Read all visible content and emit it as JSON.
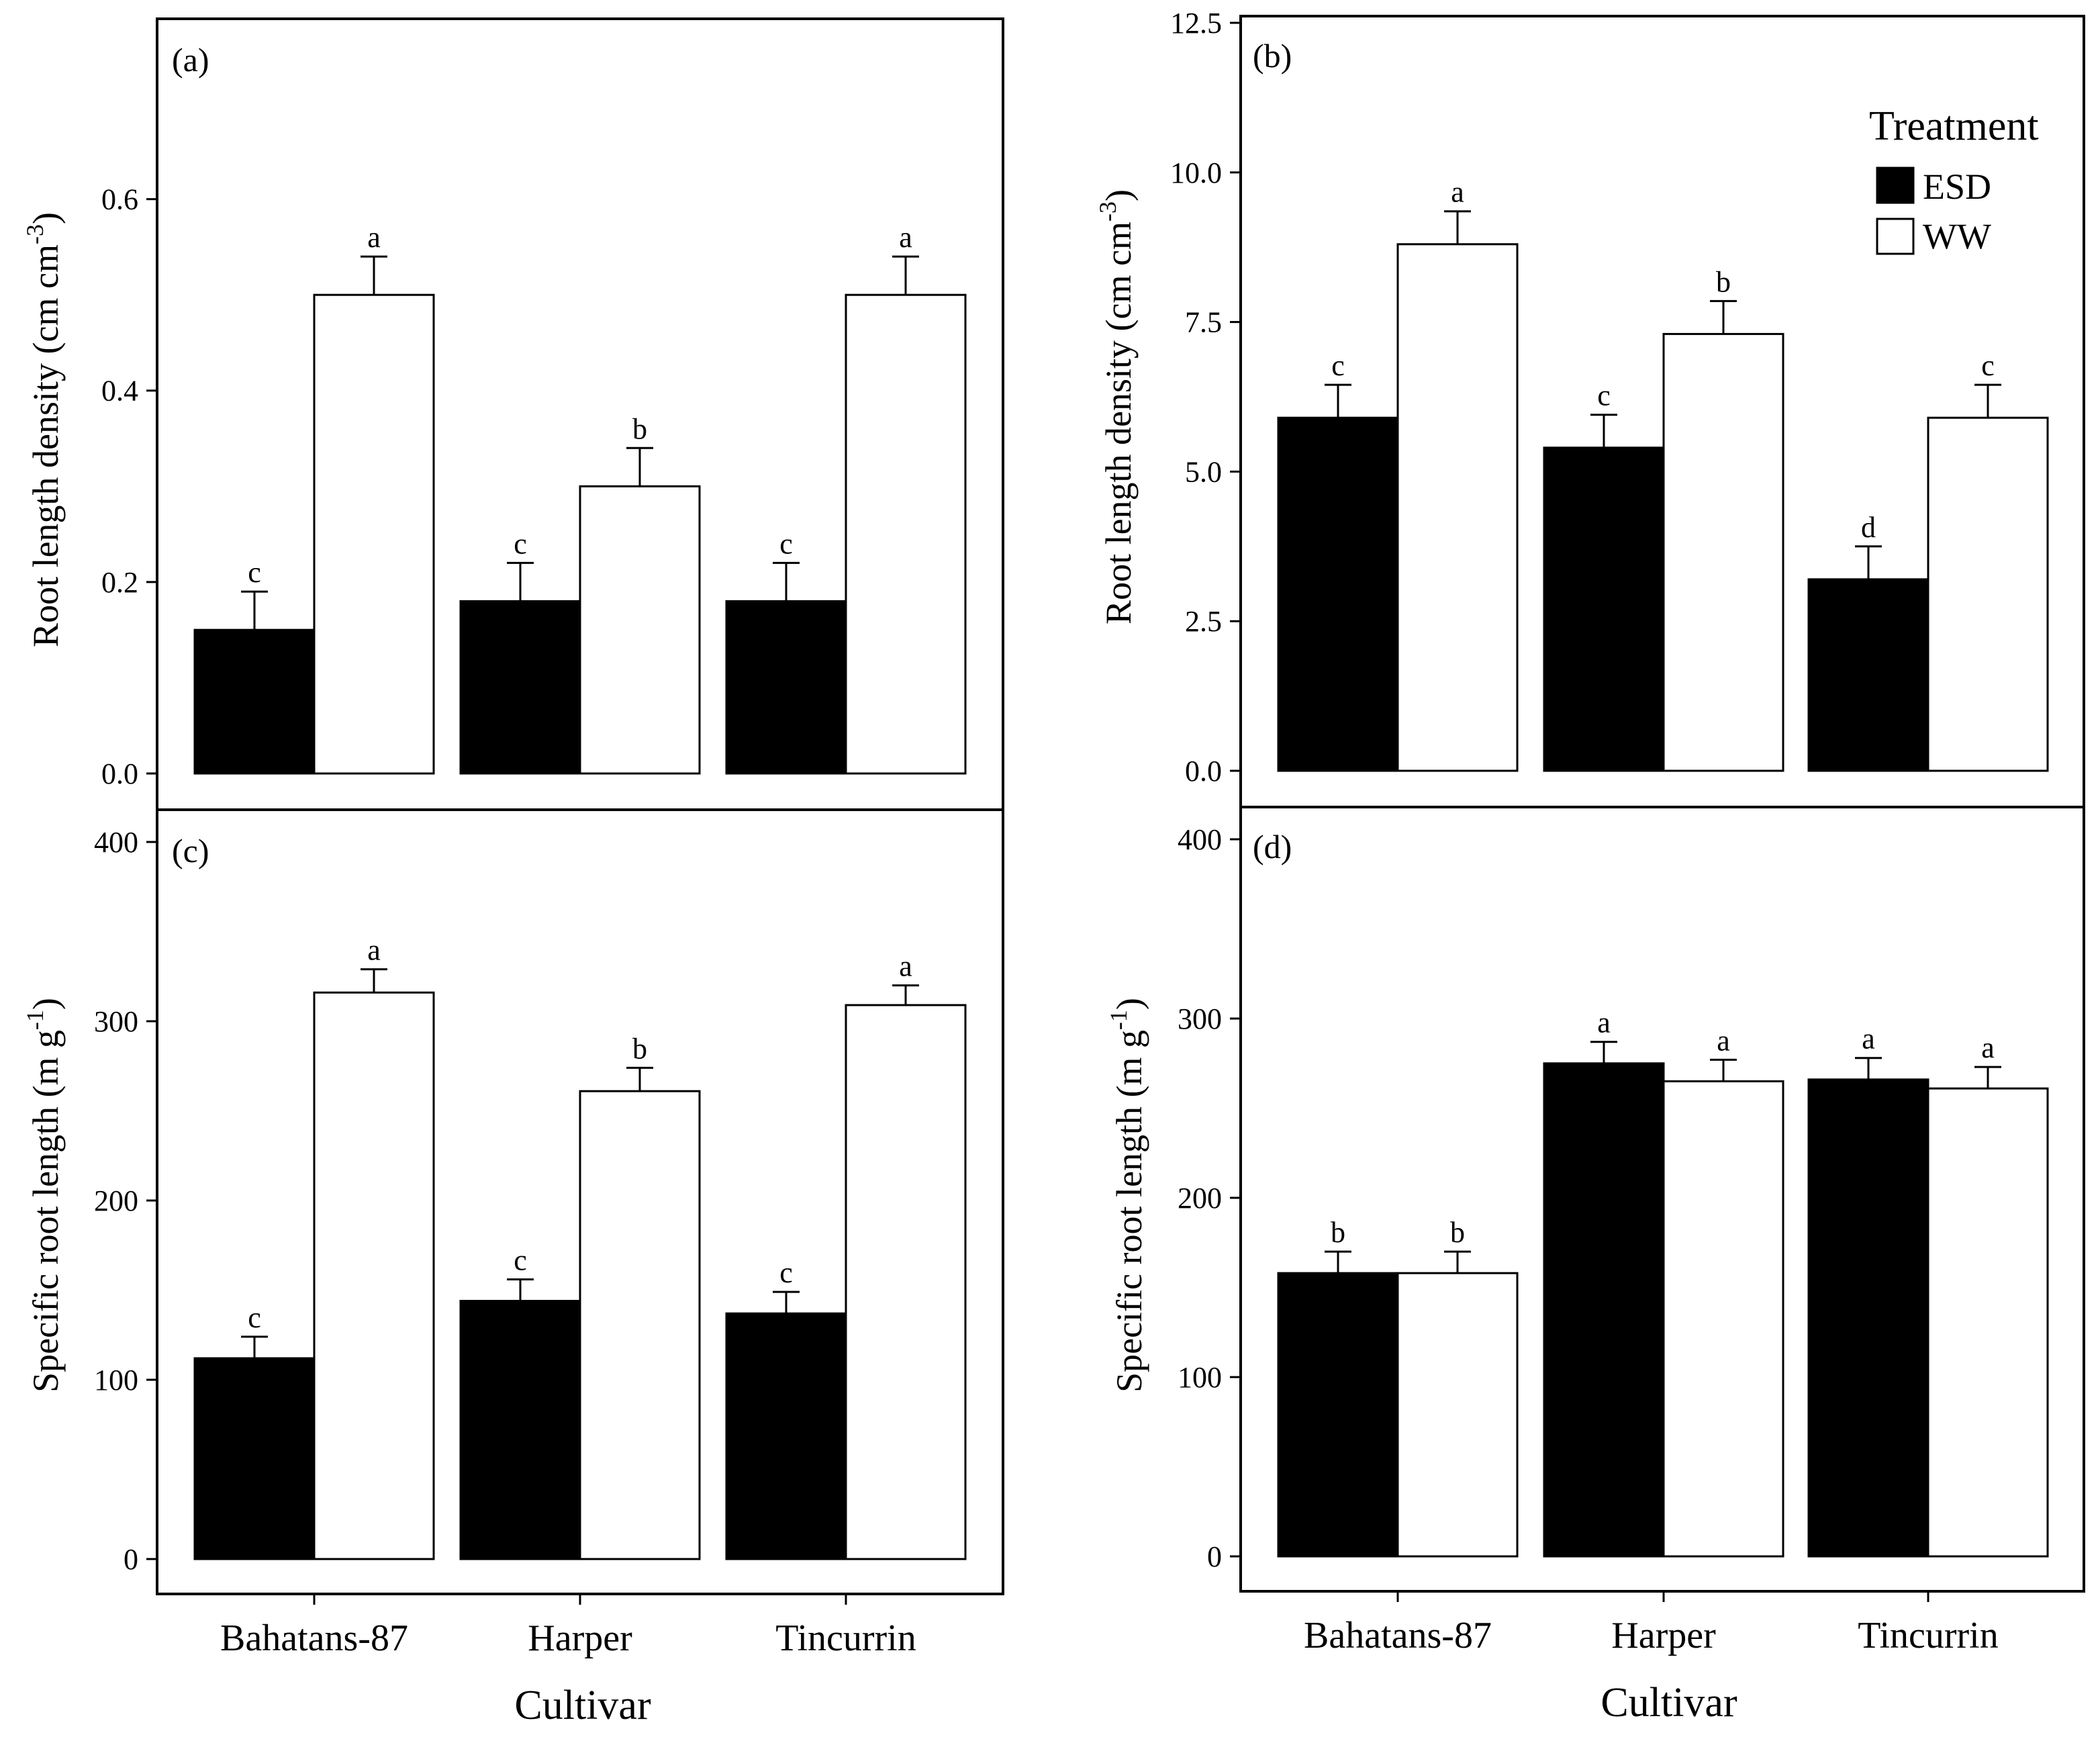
{
  "chart_data": [
    {
      "type": "bar",
      "panel": "(a)",
      "ylabel": "Root length density (cm cm",
      "ylabel_sup": "-3",
      "ylabel_end": ")",
      "ylim": [
        0,
        0.78
      ],
      "yticks": [
        0.0,
        0.2,
        0.4,
        0.6
      ],
      "ytick_labels": [
        "0.0",
        "0.2",
        "0.4",
        "0.6"
      ],
      "categories": [
        "Bahatans-87",
        "Harper",
        "Tincurrin"
      ],
      "series": [
        {
          "name": "ESD",
          "values": [
            0.15,
            0.18,
            0.18
          ],
          "errors": [
            0.04,
            0.04,
            0.04
          ],
          "letters": [
            "c",
            "c",
            "c"
          ]
        },
        {
          "name": "WW",
          "values": [
            0.5,
            0.3,
            0.5
          ],
          "errors": [
            0.04,
            0.04,
            0.04
          ],
          "letters": [
            "a",
            "b",
            "a"
          ]
        }
      ]
    },
    {
      "type": "bar",
      "panel": "(b)",
      "ylabel": "Root length density (cm cm",
      "ylabel_sup": "-3",
      "ylabel_end": ")",
      "ylim": [
        0,
        12.5
      ],
      "yticks": [
        0.0,
        2.5,
        5.0,
        7.5,
        10.0,
        12.5
      ],
      "ytick_labels": [
        "0.0",
        "2.5",
        "5.0",
        "7.5",
        "10.0",
        "12.5"
      ],
      "categories": [
        "Bahatans-87",
        "Harper",
        "Tincurrin"
      ],
      "series": [
        {
          "name": "ESD",
          "values": [
            5.9,
            5.4,
            3.2
          ],
          "errors": [
            0.55,
            0.55,
            0.55
          ],
          "letters": [
            "c",
            "c",
            "d"
          ]
        },
        {
          "name": "WW",
          "values": [
            8.8,
            7.3,
            5.9
          ],
          "errors": [
            0.55,
            0.55,
            0.55
          ],
          "letters": [
            "a",
            "b",
            "c"
          ]
        }
      ],
      "legend": {
        "title": "Treatment",
        "entries": [
          "ESD",
          "WW"
        ],
        "position": "top-right"
      }
    },
    {
      "type": "bar",
      "panel": "(c)",
      "ylabel": "Specific root length  (m g",
      "ylabel_sup": "-1",
      "ylabel_end": ")",
      "ylim": [
        0,
        400
      ],
      "yticks": [
        0,
        100,
        200,
        300,
        400
      ],
      "ytick_labels": [
        "0",
        "100",
        "200",
        "300",
        "400"
      ],
      "categories": [
        "Bahatans-87",
        "Harper",
        "Tincurrin"
      ],
      "series": [
        {
          "name": "ESD",
          "values": [
            112,
            144,
            137
          ],
          "errors": [
            12,
            12,
            12
          ],
          "letters": [
            "c",
            "c",
            "c"
          ]
        },
        {
          "name": "WW",
          "values": [
            316,
            261,
            309
          ],
          "errors": [
            13,
            13,
            11
          ],
          "letters": [
            "a",
            "b",
            "a"
          ]
        }
      ],
      "xlabel": "Cultivar"
    },
    {
      "type": "bar",
      "panel": "(d)",
      "ylabel": "Specific root length  (m g",
      "ylabel_sup": "-1",
      "ylabel_end": ")",
      "ylim": [
        0,
        400
      ],
      "yticks": [
        0,
        100,
        200,
        300,
        400
      ],
      "ytick_labels": [
        "0",
        "100",
        "200",
        "300",
        "400"
      ],
      "categories": [
        "Bahatans-87",
        "Harper",
        "Tincurrin"
      ],
      "series": [
        {
          "name": "ESD",
          "values": [
            158,
            275,
            266
          ],
          "errors": [
            12,
            12,
            12
          ],
          "letters": [
            "b",
            "a",
            "a"
          ]
        },
        {
          "name": "WW",
          "values": [
            158,
            265,
            261
          ],
          "errors": [
            12,
            12,
            12
          ],
          "letters": [
            "b",
            "a",
            "a"
          ]
        }
      ],
      "xlabel": "Cultivar"
    }
  ],
  "colors": {
    "ESD": "#000000",
    "WW": "#ffffff",
    "axis": "#000000"
  }
}
